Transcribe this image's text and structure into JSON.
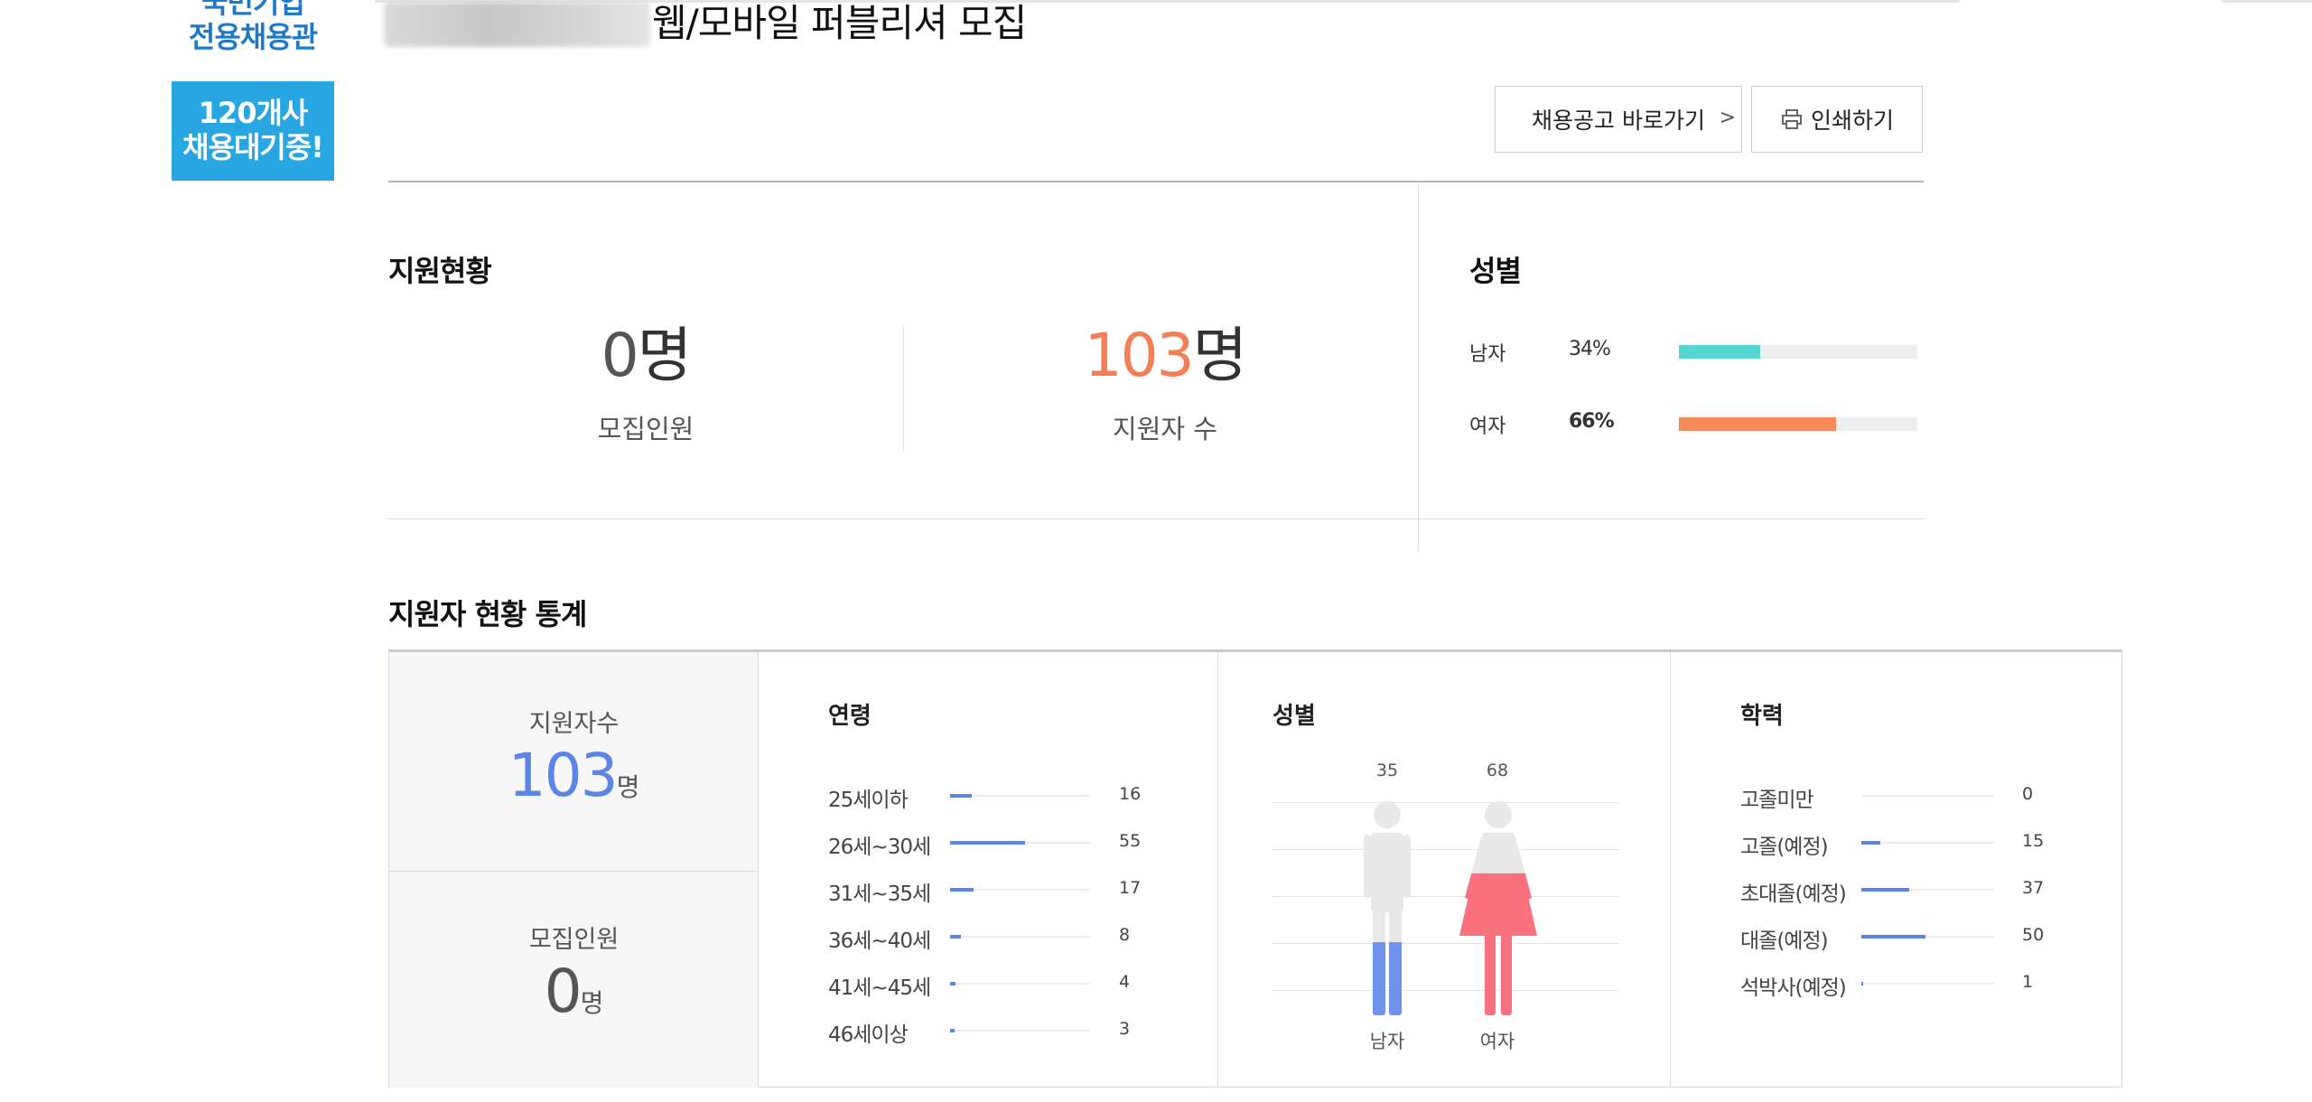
{
  "sidebar": {
    "brand_line1": "국민기업",
    "brand_line2": "전용채용관",
    "promo_line1": "120개사",
    "promo_line2": "채용대기중!"
  },
  "header": {
    "title": "웹/모바일 퍼블리셔 모집",
    "link_button": "채용공고 바로가기",
    "link_chevron": ">",
    "print_button": "인쇄하기"
  },
  "summary": {
    "section_title": "지원현황",
    "recruit_count": "0",
    "recruit_unit": "명",
    "recruit_label": "모집인원",
    "applicant_count": "103",
    "applicant_unit": "명",
    "applicant_label": "지원자 수"
  },
  "gender_summary": {
    "section_title": "성별",
    "rows": [
      {
        "label": "남자",
        "percent": "34%",
        "value": 34,
        "color": "#55d6d3"
      },
      {
        "label": "여자",
        "percent": "66%",
        "value": 66,
        "color": "#f78a5b"
      }
    ]
  },
  "stats": {
    "title": "지원자 현황 통계",
    "applicants_label": "지원자수",
    "applicants_value": "103",
    "applicants_unit": "명",
    "recruit_label": "모집인원",
    "recruit_value": "0",
    "recruit_unit": "명",
    "age": {
      "heading": "연령",
      "max": 103,
      "rows": [
        {
          "label": "25세이하",
          "value": 16
        },
        {
          "label": "26세~30세",
          "value": 55
        },
        {
          "label": "31세~35세",
          "value": 17
        },
        {
          "label": "36세~40세",
          "value": 8
        },
        {
          "label": "41세~45세",
          "value": 4
        },
        {
          "label": "46세이상",
          "value": 3
        }
      ]
    },
    "gender": {
      "heading": "성별",
      "male_label": "남자",
      "male_value": 35,
      "female_label": "여자",
      "female_value": 68
    },
    "education": {
      "heading": "학력",
      "max": 103,
      "rows": [
        {
          "label": "고졸미만",
          "value": 0
        },
        {
          "label": "고졸(예정)",
          "value": 15
        },
        {
          "label": "초대졸(예정)",
          "value": 37
        },
        {
          "label": "대졸(예정)",
          "value": 50
        },
        {
          "label": "석박사(예정)",
          "value": 1
        }
      ]
    }
  },
  "colors": {
    "blue": "#5b86e8",
    "orange": "#f47e55",
    "male_fill": "#6f93ea",
    "female_fill": "#f9707f",
    "figure_gray": "#e8e8e8"
  }
}
